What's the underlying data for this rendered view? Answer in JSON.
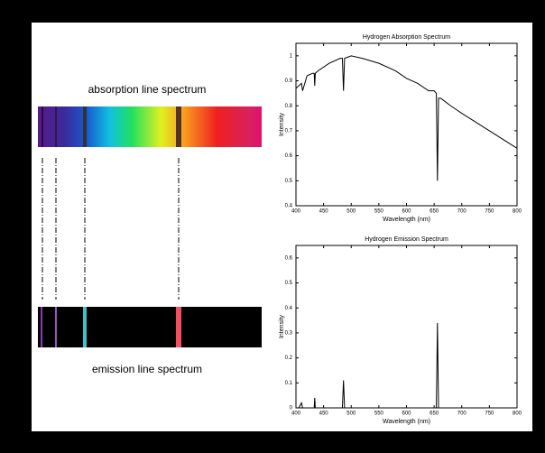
{
  "labels": {
    "absorption": "absorption line spectrum",
    "emission": "emission line spectrum"
  },
  "chart_data": [
    {
      "type": "line",
      "title": "Hydrogen Absorption Spectrum",
      "x_label": "Wavelength (nm)",
      "y_label": "Intensity",
      "color": "#000000",
      "x": [
        400,
        405,
        410,
        412,
        420,
        430,
        433,
        434,
        435,
        440,
        460,
        480,
        484,
        486,
        488,
        500,
        520,
        550,
        580,
        600,
        620,
        640,
        650,
        654,
        656,
        658,
        662,
        680,
        700,
        750,
        800
      ],
      "values": [
        0.87,
        0.88,
        0.89,
        0.86,
        0.92,
        0.93,
        0.93,
        0.88,
        0.93,
        0.94,
        0.97,
        0.99,
        0.99,
        0.86,
        0.99,
        1.0,
        0.99,
        0.97,
        0.94,
        0.91,
        0.89,
        0.86,
        0.86,
        0.85,
        0.5,
        0.83,
        0.83,
        0.8,
        0.77,
        0.7,
        0.63
      ],
      "xlim": [
        400,
        800
      ],
      "xticks": [
        400,
        450,
        500,
        550,
        600,
        650,
        700,
        750,
        800
      ],
      "ylim": [
        0.4,
        1.05
      ],
      "yticks": [
        0.4,
        0.5,
        0.6,
        0.7,
        0.8,
        0.9,
        1
      ]
    },
    {
      "type": "line",
      "title": "Hydrogen Emission Spectrum",
      "x_label": "Wavelength (nm)",
      "y_label": "Intensity",
      "color": "#000000",
      "x": [
        400,
        405,
        410,
        412,
        420,
        430,
        433,
        434,
        435,
        440,
        480,
        484,
        486,
        488,
        490,
        600,
        650,
        654,
        656,
        658,
        660,
        800
      ],
      "values": [
        0,
        0,
        0.02,
        0,
        0,
        0,
        0,
        0.04,
        0,
        0,
        0,
        0,
        0.11,
        0,
        0,
        0,
        0,
        0,
        0.34,
        0,
        0,
        0
      ],
      "xlim": [
        400,
        800
      ],
      "xticks": [
        400,
        450,
        500,
        550,
        600,
        650,
        700,
        750,
        800
      ],
      "ylim": [
        0,
        0.65
      ],
      "yticks": [
        0,
        0.1,
        0.2,
        0.3,
        0.4,
        0.5,
        0.6
      ]
    }
  ]
}
